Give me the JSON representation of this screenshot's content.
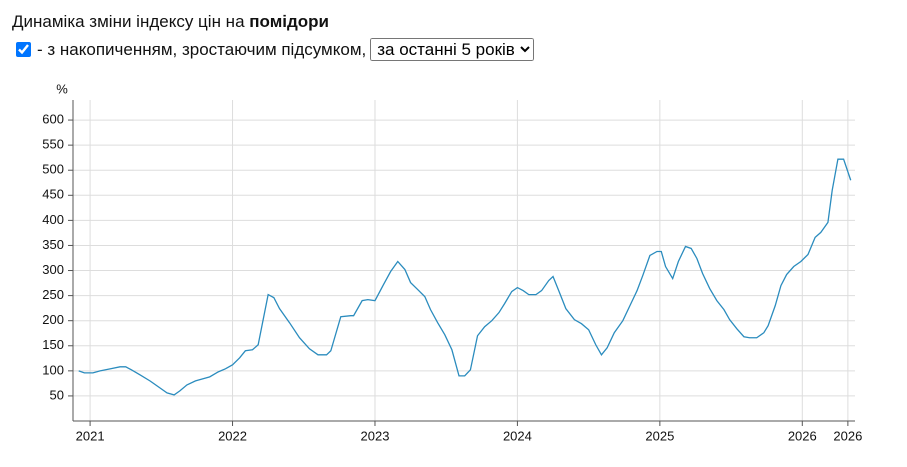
{
  "header": {
    "title": "Динаміка зміни індексу цін на",
    "product": "помідори",
    "checkbox_label": "- з накопиченням, зростаючим підсумком,",
    "select_option": "за останні 5 років"
  },
  "chart_data": {
    "type": "line",
    "y_label": "%",
    "color": "#2b8cbe",
    "grid": true,
    "x": [
      2020.92,
      2020.96,
      2021.02,
      2021.07,
      2021.14,
      2021.21,
      2021.25,
      2021.29,
      2021.35,
      2021.42,
      2021.49,
      2021.54,
      2021.59,
      2021.63,
      2021.68,
      2021.74,
      2021.79,
      2021.84,
      2021.9,
      2021.95,
      2022.0,
      2022.05,
      2022.09,
      2022.14,
      2022.18,
      2022.25,
      2022.29,
      2022.33,
      2022.4,
      2022.47,
      2022.54,
      2022.6,
      2022.66,
      2022.69,
      2022.76,
      2022.83,
      2022.85,
      2022.91,
      2022.95,
      2023.0,
      2023.06,
      2023.11,
      2023.16,
      2023.21,
      2023.25,
      2023.3,
      2023.35,
      2023.39,
      2023.44,
      2023.49,
      2023.54,
      2023.59,
      2023.63,
      2023.67,
      2023.72,
      2023.77,
      2023.82,
      2023.87,
      2023.91,
      2023.96,
      2024.0,
      2024.04,
      2024.08,
      2024.13,
      2024.17,
      2024.22,
      2024.25,
      2024.29,
      2024.34,
      2024.4,
      2024.45,
      2024.5,
      2024.55,
      2024.59,
      2024.63,
      2024.68,
      2024.74,
      2024.79,
      2024.84,
      2024.88,
      2024.93,
      2024.98,
      2025.01,
      2025.04,
      2025.09,
      2025.13,
      2025.18,
      2025.22,
      2025.26,
      2025.3,
      2025.35,
      2025.4,
      2025.45,
      2025.49,
      2025.54,
      2025.59,
      2025.63,
      2025.68,
      2025.73,
      2025.76,
      2025.81,
      2025.85,
      2025.89,
      2025.94,
      2025.99,
      2026.04,
      2026.09,
      2026.13,
      2026.18,
      2026.21,
      2026.25,
      2026.29,
      2026.34
    ],
    "values": [
      100,
      96,
      96,
      100,
      104,
      108,
      108,
      102,
      92,
      80,
      66,
      56,
      52,
      60,
      72,
      80,
      84,
      88,
      98,
      104,
      112,
      126,
      140,
      142,
      152,
      252,
      246,
      224,
      196,
      166,
      144,
      132,
      132,
      140,
      208,
      210,
      210,
      240,
      242,
      240,
      272,
      298,
      318,
      302,
      276,
      262,
      248,
      222,
      196,
      172,
      142,
      90,
      90,
      102,
      170,
      188,
      200,
      216,
      234,
      258,
      266,
      260,
      252,
      252,
      260,
      280,
      288,
      260,
      224,
      202,
      194,
      182,
      152,
      132,
      146,
      176,
      200,
      230,
      260,
      290,
      330,
      338,
      338,
      308,
      284,
      318,
      348,
      344,
      324,
      294,
      264,
      240,
      222,
      202,
      184,
      168,
      166,
      166,
      176,
      190,
      230,
      270,
      292,
      308,
      318,
      332,
      366,
      376,
      396,
      460,
      522,
      522,
      480
    ],
    "xlim": [
      2020.88,
      2026.37
    ],
    "xticks": [
      2021,
      2022,
      2023,
      2024,
      2025,
      2026,
      {
        "value": 2026.32,
        "label": "2026"
      }
    ],
    "ylim": [
      0,
      640
    ],
    "yticks": [
      50,
      100,
      150,
      200,
      250,
      300,
      350,
      400,
      450,
      500,
      550,
      600
    ]
  }
}
